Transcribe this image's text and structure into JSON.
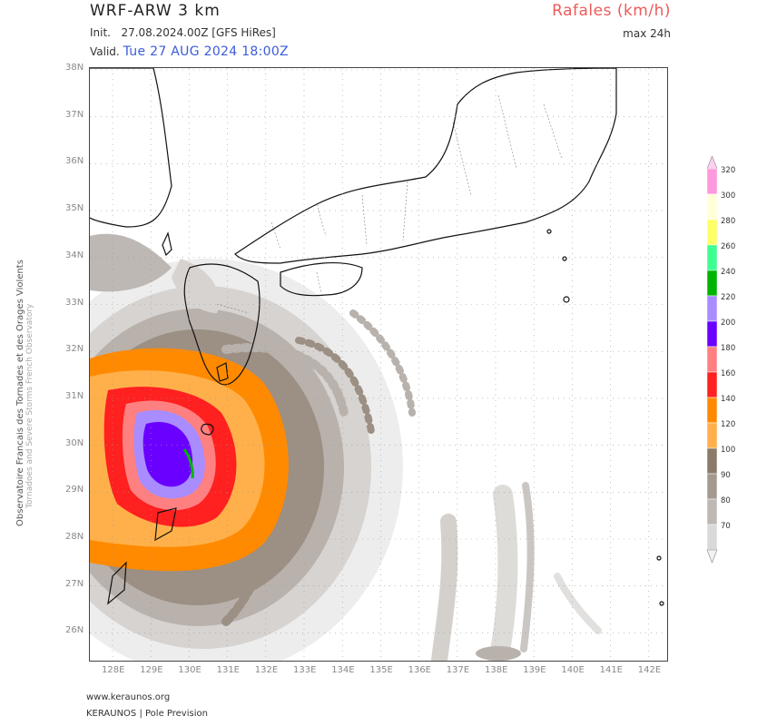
{
  "header": {
    "model": "WRF-ARW 3 km",
    "init_label": "Init.",
    "init_value": "27.08.2024.00Z [GFS HiRes]",
    "valid_label": "Valid.",
    "valid_value": "Tue 27 AUG 2024 18:00Z",
    "parameter": "Rafales (km/h)",
    "max_label": "max 24h"
  },
  "map": {
    "lat_labels": [
      "38N",
      "37N",
      "36N",
      "35N",
      "34N",
      "33N",
      "32N",
      "31N",
      "30N",
      "29N",
      "28N",
      "27N",
      "26N"
    ],
    "lon_labels": [
      "128E",
      "129E",
      "130E",
      "131E",
      "132E",
      "133E",
      "134E",
      "135E",
      "136E",
      "137E",
      "138E",
      "139E",
      "140E",
      "141E",
      "142E"
    ]
  },
  "side_credit": {
    "line1": "Observatoire Francais des Tornades et des Orages Violents",
    "line2": "Tornadoes and Severe Storms French Observatory"
  },
  "legend": {
    "ticks": [
      "320",
      "300",
      "280",
      "260",
      "240",
      "220",
      "200",
      "180",
      "160",
      "140",
      "120",
      "100",
      "90",
      "80",
      "70"
    ],
    "colors": {
      "c70": "#d9d9d9",
      "c80": "#bdb8b4",
      "c90": "#a49a90",
      "c100": "#8c7a68",
      "c120": "#ffb04a",
      "c140": "#ff8a00",
      "c160": "#ff2020",
      "c180": "#ff8080",
      "c200": "#6a00ff",
      "c220": "#a98cff",
      "c240": "#00b400",
      "c260": "#3cff90",
      "c280": "#ffff66",
      "c300": "#ffffd8",
      "c320": "#ff99dd"
    }
  },
  "footer": {
    "url": "www.keraunos.org",
    "org": "KERAUNOS | Pole Prevision"
  }
}
